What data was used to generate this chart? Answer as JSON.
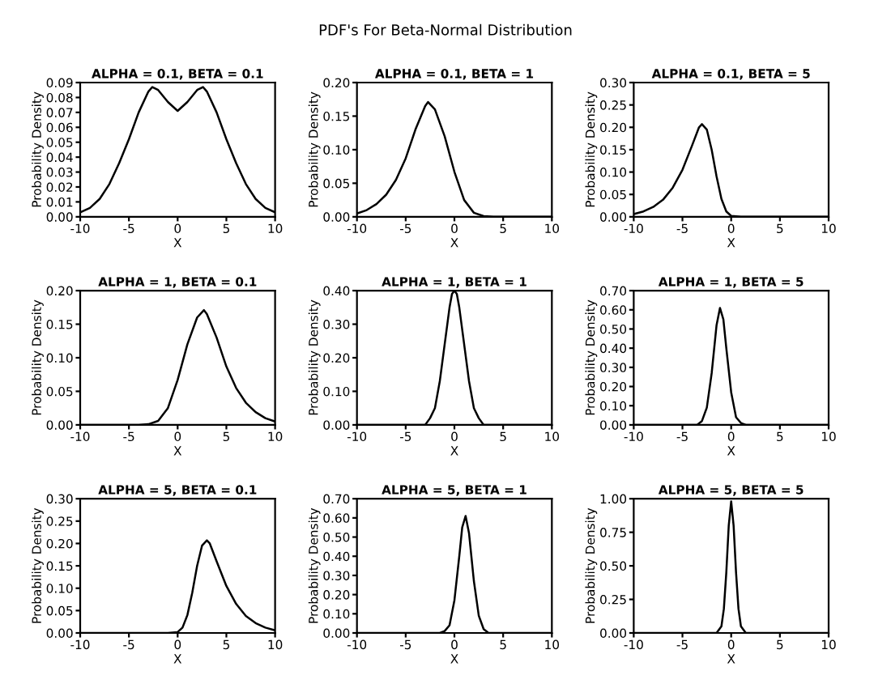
{
  "chart_data": [
    {
      "type": "line",
      "title": "ALPHA = 0.1, BETA = 0.1",
      "xlabel": "X",
      "ylabel": "Probability Density",
      "annotations": [
        "PDF's For Beta-Normal Distribution"
      ],
      "series": [
        {
          "color": "#000000",
          "x": [
            -10,
            -9,
            -8,
            -7,
            -6,
            -5,
            -4,
            -3,
            -2.6,
            -2,
            -1,
            0,
            1,
            2,
            2.6,
            3,
            4,
            5,
            6,
            7,
            8,
            9,
            10
          ],
          "values": [
            0.003,
            0.006,
            0.012,
            0.022,
            0.036,
            0.052,
            0.07,
            0.084,
            0.087,
            0.085,
            0.077,
            0.071,
            0.077,
            0.085,
            0.087,
            0.084,
            0.07,
            0.052,
            0.036,
            0.022,
            0.012,
            0.006,
            0.003
          ]
        }
      ],
      "xlim": [
        -10,
        10
      ],
      "xticks": [
        -10,
        -5,
        0,
        5,
        10
      ],
      "ylim": [
        0,
        0.09
      ],
      "yticks": [
        {
          "value": 0,
          "label": "0.00"
        },
        {
          "value": 0.01,
          "label": "0.01"
        },
        {
          "value": 0.02,
          "label": "0.02"
        },
        {
          "value": 0.03,
          "label": "0.03"
        },
        {
          "value": 0.04,
          "label": "0.04"
        },
        {
          "value": 0.05,
          "label": "0.05"
        },
        {
          "value": 0.06,
          "label": "0.06"
        },
        {
          "value": 0.07,
          "label": "0.07"
        },
        {
          "value": 0.08,
          "label": "0.08"
        },
        {
          "value": 0.09,
          "label": "0.09"
        }
      ]
    },
    {
      "type": "line",
      "title": "ALPHA = 0.1, BETA = 1",
      "xlabel": "X",
      "ylabel": "Probability Density",
      "series": [
        {
          "color": "#000000",
          "x": [
            -10,
            -9,
            -8,
            -7,
            -6,
            -5,
            -4,
            -3,
            -2.7,
            -2,
            -1,
            0,
            1,
            2,
            3,
            4,
            10
          ],
          "values": [
            0.005,
            0.01,
            0.019,
            0.033,
            0.055,
            0.087,
            0.13,
            0.165,
            0.171,
            0.16,
            0.12,
            0.067,
            0.025,
            0.006,
            0.001,
            0,
            0
          ]
        }
      ],
      "xlim": [
        -10,
        10
      ],
      "xticks": [
        -10,
        -5,
        0,
        5,
        10
      ],
      "ylim": [
        0,
        0.2
      ],
      "yticks": [
        {
          "value": 0,
          "label": "0.00"
        },
        {
          "value": 0.05,
          "label": "0.05"
        },
        {
          "value": 0.1,
          "label": "0.10"
        },
        {
          "value": 0.15,
          "label": "0.15"
        },
        {
          "value": 0.2,
          "label": "0.20"
        }
      ]
    },
    {
      "type": "line",
      "title": "ALPHA = 0.1, BETA = 5",
      "xlabel": "X",
      "ylabel": "Probability Density",
      "series": [
        {
          "color": "#000000",
          "x": [
            -10,
            -9,
            -8,
            -7,
            -6,
            -5,
            -4,
            -3.3,
            -3,
            -2.5,
            -2,
            -1.5,
            -1,
            -0.5,
            0,
            1,
            10
          ],
          "values": [
            0.006,
            0.012,
            0.022,
            0.038,
            0.065,
            0.105,
            0.16,
            0.2,
            0.207,
            0.195,
            0.15,
            0.09,
            0.04,
            0.012,
            0.002,
            0,
            0
          ]
        }
      ],
      "xlim": [
        -10,
        10
      ],
      "xticks": [
        -10,
        -5,
        0,
        5,
        10
      ],
      "ylim": [
        0,
        0.3
      ],
      "yticks": [
        {
          "value": 0,
          "label": "0.00"
        },
        {
          "value": 0.05,
          "label": "0.05"
        },
        {
          "value": 0.1,
          "label": "0.10"
        },
        {
          "value": 0.15,
          "label": "0.15"
        },
        {
          "value": 0.2,
          "label": "0.20"
        },
        {
          "value": 0.25,
          "label": "0.25"
        },
        {
          "value": 0.3,
          "label": "0.30"
        }
      ]
    },
    {
      "type": "line",
      "title": "ALPHA = 1, BETA = 0.1",
      "xlabel": "X",
      "ylabel": "Probability Density",
      "series": [
        {
          "color": "#000000",
          "x": [
            -10,
            -4,
            -3,
            -2,
            -1,
            0,
            1,
            2,
            2.7,
            3,
            4,
            5,
            6,
            7,
            8,
            9,
            10
          ],
          "values": [
            0,
            0,
            0.001,
            0.006,
            0.025,
            0.067,
            0.12,
            0.16,
            0.171,
            0.165,
            0.13,
            0.087,
            0.055,
            0.033,
            0.019,
            0.01,
            0.005
          ]
        }
      ],
      "xlim": [
        -10,
        10
      ],
      "xticks": [
        -10,
        -5,
        0,
        5,
        10
      ],
      "ylim": [
        0,
        0.2
      ],
      "yticks": [
        {
          "value": 0,
          "label": "0.00"
        },
        {
          "value": 0.05,
          "label": "0.05"
        },
        {
          "value": 0.1,
          "label": "0.10"
        },
        {
          "value": 0.15,
          "label": "0.15"
        },
        {
          "value": 0.2,
          "label": "0.20"
        }
      ]
    },
    {
      "type": "line",
      "title": "ALPHA = 1, BETA = 1",
      "xlabel": "X",
      "ylabel": "Probability Density",
      "series": [
        {
          "color": "#000000",
          "x": [
            -10,
            -4,
            -3,
            -2.5,
            -2,
            -1.5,
            -1,
            -0.5,
            -0.25,
            0,
            0.25,
            0.5,
            1,
            1.5,
            2,
            2.5,
            3,
            4,
            10
          ],
          "values": [
            0,
            0,
            0,
            0.02,
            0.05,
            0.13,
            0.24,
            0.35,
            0.39,
            0.4,
            0.39,
            0.35,
            0.24,
            0.13,
            0.05,
            0.02,
            0,
            0,
            0
          ]
        }
      ],
      "xlim": [
        -10,
        10
      ],
      "xticks": [
        -10,
        -5,
        0,
        5,
        10
      ],
      "ylim": [
        0,
        0.4
      ],
      "yticks": [
        {
          "value": 0,
          "label": "0.00"
        },
        {
          "value": 0.1,
          "label": "0.10"
        },
        {
          "value": 0.2,
          "label": "0.20"
        },
        {
          "value": 0.3,
          "label": "0.30"
        },
        {
          "value": 0.4,
          "label": "0.40"
        }
      ]
    },
    {
      "type": "line",
      "title": "ALPHA = 1, BETA = 5",
      "xlabel": "X",
      "ylabel": "Probability Density",
      "series": [
        {
          "color": "#000000",
          "x": [
            -10,
            -4,
            -3.5,
            -3,
            -2.5,
            -2,
            -1.5,
            -1.15,
            -0.8,
            -0.5,
            0,
            0.5,
            1,
            1.5,
            10
          ],
          "values": [
            0,
            0,
            0,
            0.02,
            0.09,
            0.27,
            0.52,
            0.61,
            0.55,
            0.4,
            0.17,
            0.04,
            0.01,
            0,
            0
          ]
        }
      ],
      "xlim": [
        -10,
        10
      ],
      "xticks": [
        -10,
        -5,
        0,
        5,
        10
      ],
      "ylim": [
        0,
        0.7
      ],
      "yticks": [
        {
          "value": 0,
          "label": "0.00"
        },
        {
          "value": 0.1,
          "label": "0.10"
        },
        {
          "value": 0.2,
          "label": "0.20"
        },
        {
          "value": 0.3,
          "label": "0.30"
        },
        {
          "value": 0.4,
          "label": "0.40"
        },
        {
          "value": 0.5,
          "label": "0.50"
        },
        {
          "value": 0.6,
          "label": "0.60"
        },
        {
          "value": 0.7,
          "label": "0.70"
        }
      ]
    },
    {
      "type": "line",
      "title": "ALPHA = 5, BETA = 0.1",
      "xlabel": "X",
      "ylabel": "Probability Density",
      "series": [
        {
          "color": "#000000",
          "x": [
            -10,
            -1,
            0,
            0.5,
            1,
            1.5,
            2,
            2.5,
            3,
            3.3,
            4,
            5,
            6,
            7,
            8,
            9,
            10
          ],
          "values": [
            0,
            0,
            0.002,
            0.012,
            0.04,
            0.09,
            0.15,
            0.195,
            0.207,
            0.2,
            0.16,
            0.105,
            0.065,
            0.038,
            0.022,
            0.012,
            0.006
          ]
        }
      ],
      "xlim": [
        -10,
        10
      ],
      "xticks": [
        -10,
        -5,
        0,
        5,
        10
      ],
      "ylim": [
        0,
        0.3
      ],
      "yticks": [
        {
          "value": 0,
          "label": "0.00"
        },
        {
          "value": 0.05,
          "label": "0.05"
        },
        {
          "value": 0.1,
          "label": "0.10"
        },
        {
          "value": 0.15,
          "label": "0.15"
        },
        {
          "value": 0.2,
          "label": "0.20"
        },
        {
          "value": 0.25,
          "label": "0.25"
        },
        {
          "value": 0.3,
          "label": "0.30"
        }
      ]
    },
    {
      "type": "line",
      "title": "ALPHA = 5, BETA = 1",
      "xlabel": "X",
      "ylabel": "Probability Density",
      "series": [
        {
          "color": "#000000",
          "x": [
            -10,
            -1.5,
            -1,
            -0.5,
            0,
            0.5,
            0.8,
            1.15,
            1.5,
            2,
            2.5,
            3,
            3.5,
            4,
            10
          ],
          "values": [
            0,
            0,
            0.01,
            0.04,
            0.17,
            0.4,
            0.55,
            0.61,
            0.52,
            0.27,
            0.09,
            0.02,
            0,
            0,
            0
          ]
        }
      ],
      "xlim": [
        -10,
        10
      ],
      "xticks": [
        -10,
        -5,
        0,
        5,
        10
      ],
      "ylim": [
        0,
        0.7
      ],
      "yticks": [
        {
          "value": 0,
          "label": "0.00"
        },
        {
          "value": 0.1,
          "label": "0.10"
        },
        {
          "value": 0.2,
          "label": "0.20"
        },
        {
          "value": 0.3,
          "label": "0.30"
        },
        {
          "value": 0.4,
          "label": "0.40"
        },
        {
          "value": 0.5,
          "label": "0.50"
        },
        {
          "value": 0.6,
          "label": "0.60"
        },
        {
          "value": 0.7,
          "label": "0.70"
        }
      ]
    },
    {
      "type": "line",
      "title": "ALPHA = 5, BETA = 5",
      "xlabel": "X",
      "ylabel": "Probability Density",
      "series": [
        {
          "color": "#000000",
          "x": [
            -10,
            -2,
            -1.5,
            -1,
            -0.75,
            -0.5,
            -0.25,
            0,
            0.25,
            0.5,
            0.75,
            1,
            1.5,
            2,
            10
          ],
          "values": [
            0,
            0,
            0,
            0.05,
            0.18,
            0.45,
            0.8,
            0.98,
            0.8,
            0.45,
            0.18,
            0.05,
            0,
            0,
            0
          ]
        }
      ],
      "xlim": [
        -10,
        10
      ],
      "xticks": [
        -10,
        -5,
        0,
        5,
        10
      ],
      "ylim": [
        0,
        1
      ],
      "yticks": [
        {
          "value": 0,
          "label": "0.00"
        },
        {
          "value": 0.25,
          "label": "0.25"
        },
        {
          "value": 0.5,
          "label": "0.50"
        },
        {
          "value": 0.75,
          "label": "0.75"
        },
        {
          "value": 1,
          "label": "1.00"
        }
      ]
    }
  ]
}
